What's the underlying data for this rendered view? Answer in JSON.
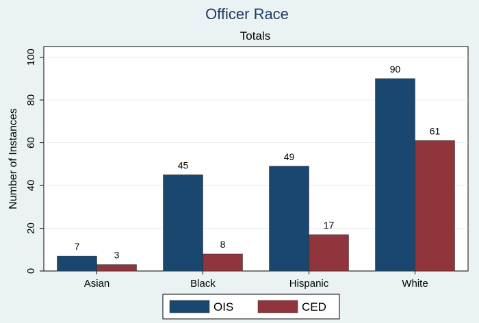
{
  "chart_data": {
    "type": "bar",
    "title": "Officer Race",
    "subtitle": "Totals",
    "xlabel": "",
    "ylabel": "Number of Instances",
    "categories": [
      "Asian",
      "Black",
      "Hispanic",
      "White"
    ],
    "series": [
      {
        "name": "OIS",
        "values": [
          7,
          45,
          49,
          90
        ],
        "color": "#1a476f"
      },
      {
        "name": "CED",
        "values": [
          3,
          8,
          17,
          61
        ],
        "color": "#90353b"
      }
    ],
    "ylim": [
      0,
      105
    ],
    "yticks": [
      0,
      20,
      40,
      60,
      80,
      100
    ],
    "grid": true,
    "legend": "bottom-center",
    "plot_background": "#ffffff",
    "figure_background": "#eaf2f3"
  }
}
